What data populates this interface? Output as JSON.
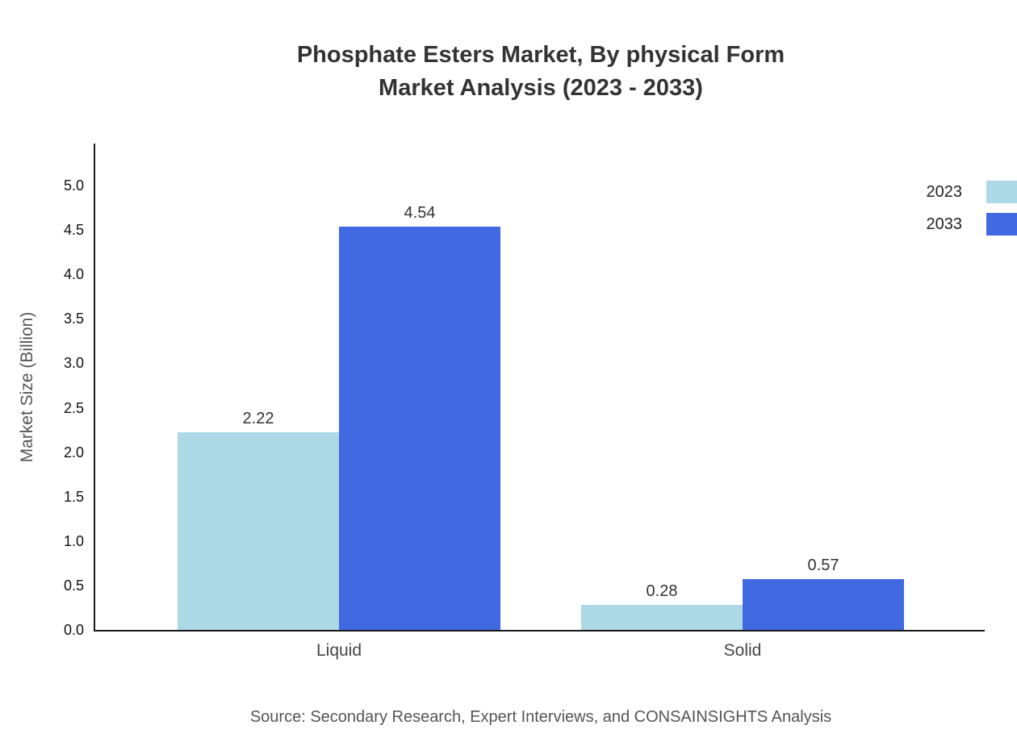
{
  "title": {
    "line1": "Phosphate Esters Market, By physical Form",
    "line2": "Market Analysis (2023 - 2033)"
  },
  "source": "Source: Secondary Research, Expert Interviews, and CONSAINSIGHTS Analysis",
  "chart_data": {
    "type": "bar",
    "title": "Phosphate Esters Market, By physical Form Market Analysis (2023 - 2033)",
    "categories": [
      "Liquid",
      "Solid"
    ],
    "series": [
      {
        "name": "2023",
        "color": "#ADD8E6",
        "values": [
          2.22,
          0.28
        ]
      },
      {
        "name": "2033",
        "color": "#4169E1",
        "values": [
          4.54,
          0.57
        ]
      }
    ],
    "xlabel": "",
    "ylabel": "Market Size (Billion)",
    "ylim": [
      0,
      5.5
    ],
    "yticks": [
      0.0,
      0.5,
      1.0,
      1.5,
      2.0,
      2.5,
      3.0,
      3.5,
      4.0,
      4.5,
      5.0
    ],
    "grid": false,
    "legend_position": "top-right",
    "value_labels": true
  }
}
